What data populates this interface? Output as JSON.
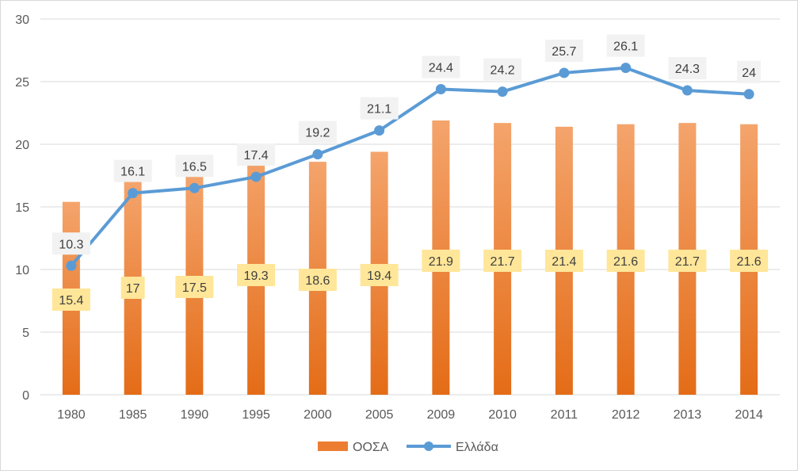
{
  "chart_data": {
    "type": "bar",
    "categories": [
      "1980",
      "1985",
      "1990",
      "1995",
      "2000",
      "2005",
      "2009",
      "2010",
      "2011",
      "2012",
      "2013",
      "2014"
    ],
    "series": [
      {
        "name": "ΟΟΣΑ",
        "kind": "bar",
        "values": [
          15.4,
          17,
          17.5,
          19.3,
          18.6,
          19.4,
          21.9,
          21.7,
          21.4,
          21.6,
          21.7,
          21.6
        ],
        "color": "#ED7D31",
        "label_bg": "#FFE699",
        "labels": [
          "15.4",
          "17",
          "17.5",
          "19.3",
          "18.6",
          "19.4",
          "21.9",
          "21.7",
          "21.4",
          "21.6",
          "21.7",
          "21.6"
        ]
      },
      {
        "name": "Ελλάδα",
        "kind": "line",
        "values": [
          10.3,
          16.1,
          16.5,
          17.4,
          19.2,
          21.1,
          24.4,
          24.2,
          25.7,
          26.1,
          24.3,
          24
        ],
        "color": "#5B9BD5",
        "label_bg": "#F2F2F2",
        "labels": [
          "10.3",
          "16.1",
          "16.5",
          "17.4",
          "19.2",
          "21.1",
          "24.4",
          "24.2",
          "25.7",
          "26.1",
          "24.3",
          "24"
        ]
      }
    ],
    "ylim": [
      0,
      30
    ],
    "yticks": [
      "0",
      "5",
      "10",
      "15",
      "20",
      "25",
      "30"
    ],
    "grid": true,
    "legend": "bottom-center",
    "title": "",
    "xlabel": "",
    "ylabel": ""
  }
}
